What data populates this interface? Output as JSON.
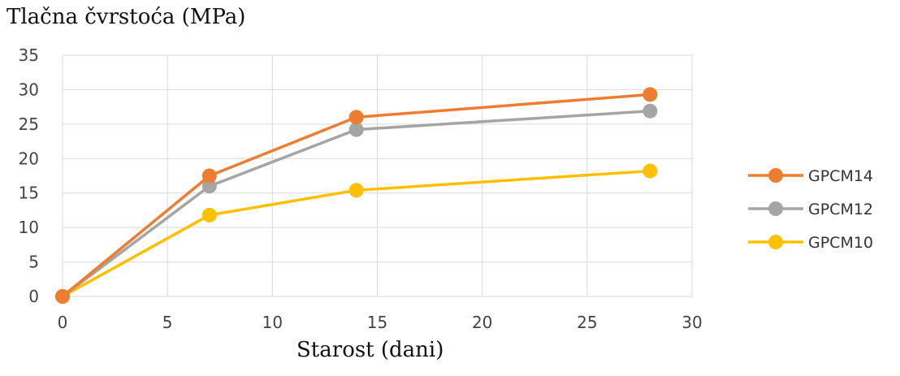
{
  "chart_data": {
    "type": "line",
    "ylabel": "Tlačna čvrstoća (MPa)",
    "xlabel": "Starost (dani)",
    "xlim": [
      0,
      30
    ],
    "ylim": [
      0,
      35
    ],
    "xticks": [
      0,
      5,
      10,
      15,
      20,
      25,
      30
    ],
    "yticks": [
      0,
      5,
      10,
      15,
      20,
      25,
      30,
      35
    ],
    "grid": true,
    "legend_position": "right",
    "x": [
      0,
      7,
      14,
      28
    ],
    "series": [
      {
        "name": "GPCM14",
        "color": "#ED7D31",
        "values": [
          0,
          17.5,
          26.0,
          29.3
        ]
      },
      {
        "name": "GPCM12",
        "color": "#A5A5A5",
        "values": [
          0,
          16.0,
          24.2,
          26.9
        ]
      },
      {
        "name": "GPCM10",
        "color": "#FFC000",
        "values": [
          0,
          11.8,
          15.4,
          18.2
        ]
      }
    ]
  }
}
